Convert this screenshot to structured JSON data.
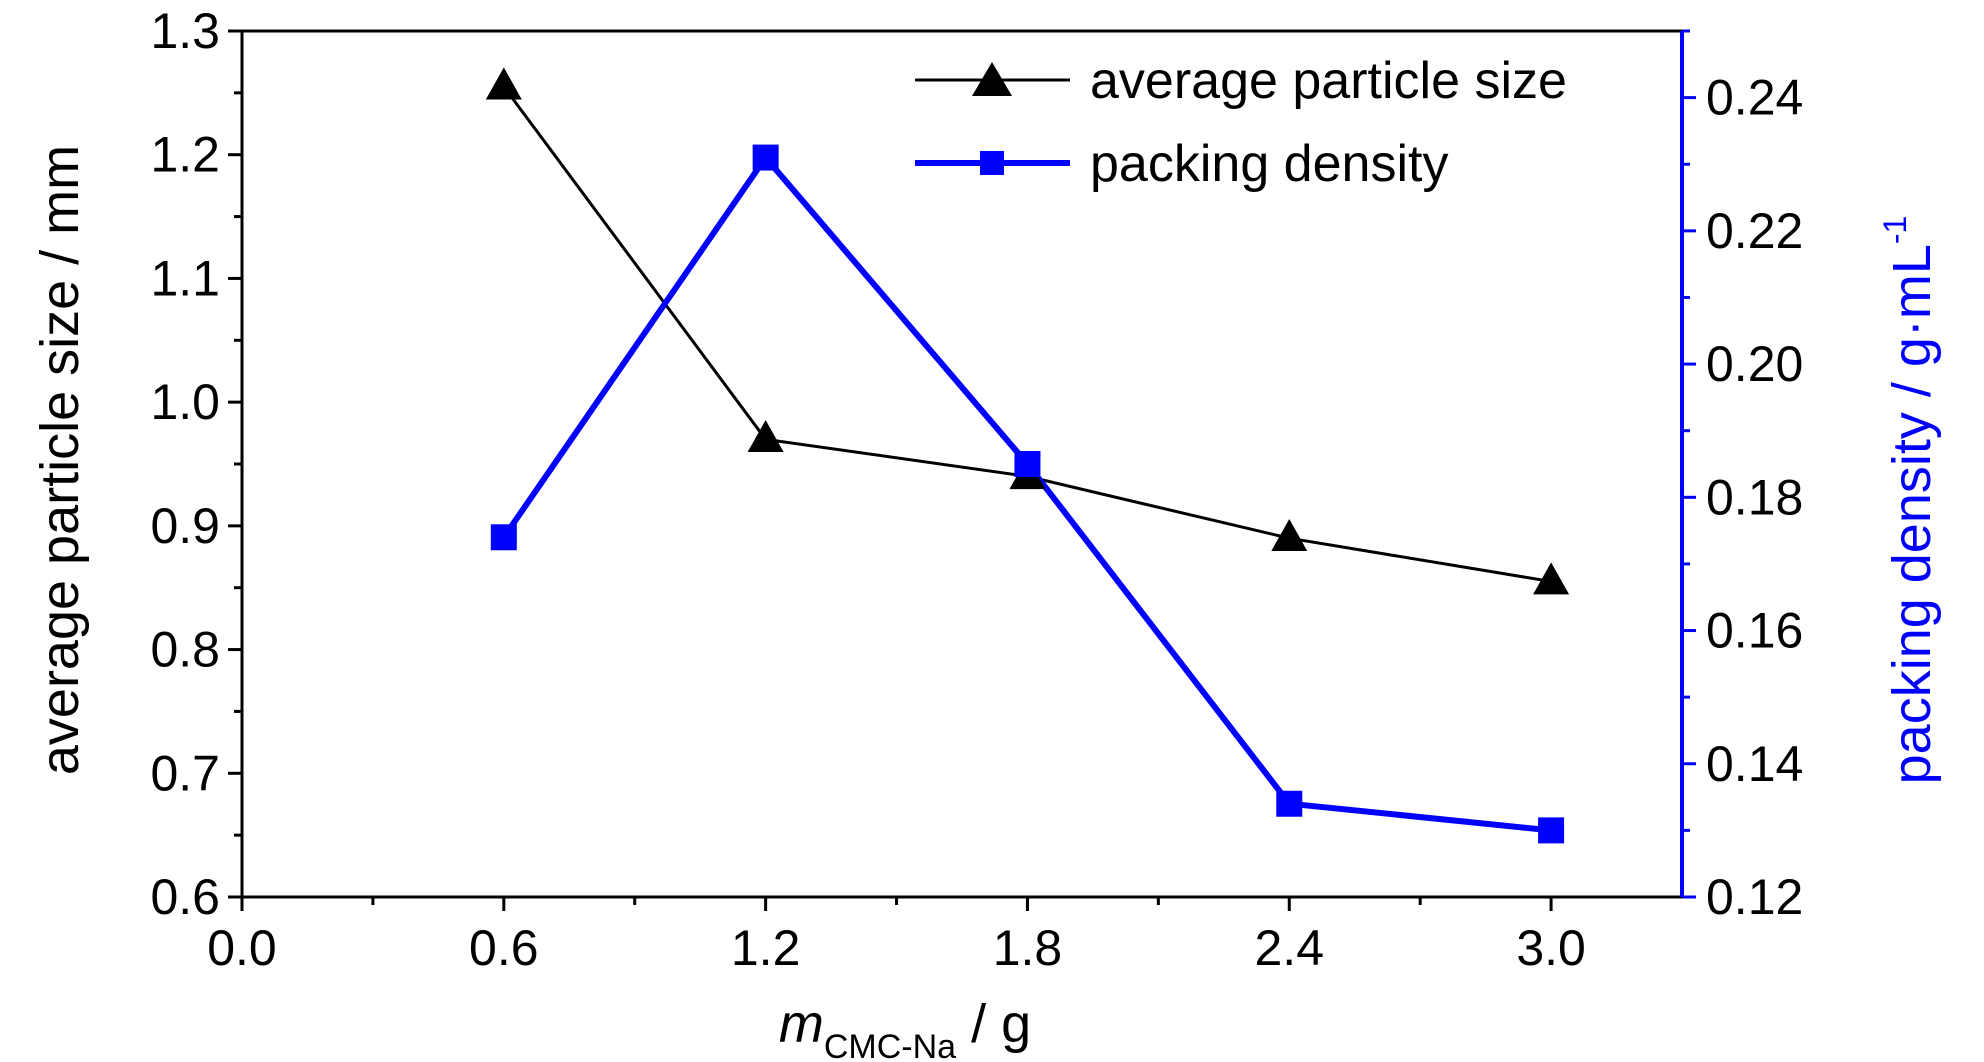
{
  "chart_data": {
    "type": "line",
    "x": [
      0.6,
      1.2,
      1.8,
      2.4,
      3.0
    ],
    "series": [
      {
        "name": "average particle size",
        "axis": "left",
        "values": [
          1.255,
          0.97,
          0.94,
          0.89,
          0.855
        ],
        "color": "#000000",
        "marker": "triangle"
      },
      {
        "name": "packing density",
        "axis": "right",
        "values": [
          0.174,
          0.231,
          0.185,
          0.134,
          0.13
        ],
        "color": "#0000ff",
        "marker": "square"
      }
    ],
    "xlim": [
      0.0,
      3.3
    ],
    "ylim_left": [
      0.6,
      1.3
    ],
    "ylim_right": [
      0.12,
      0.25
    ],
    "x_ticks": [
      "0.0",
      "0.6",
      "1.2",
      "1.8",
      "2.4",
      "3.0"
    ],
    "y_left_ticks": [
      "0.6",
      "0.7",
      "0.8",
      "0.9",
      "1.0",
      "1.1",
      "1.2",
      "1.3"
    ],
    "y_right_ticks": [
      "0.12",
      "0.14",
      "0.16",
      "0.18",
      "0.20",
      "0.22",
      "0.24"
    ],
    "xlabel": {
      "italic": "m",
      "subscript": "CMC-Na",
      "rest": " / g"
    },
    "ylabel_left": "average particle size / mm",
    "ylabel_right": {
      "main": "packing density / g·mL",
      "superscript": "-1"
    },
    "legend_position": "top-right",
    "grid": false,
    "right_axis_color": "#0000ff"
  }
}
